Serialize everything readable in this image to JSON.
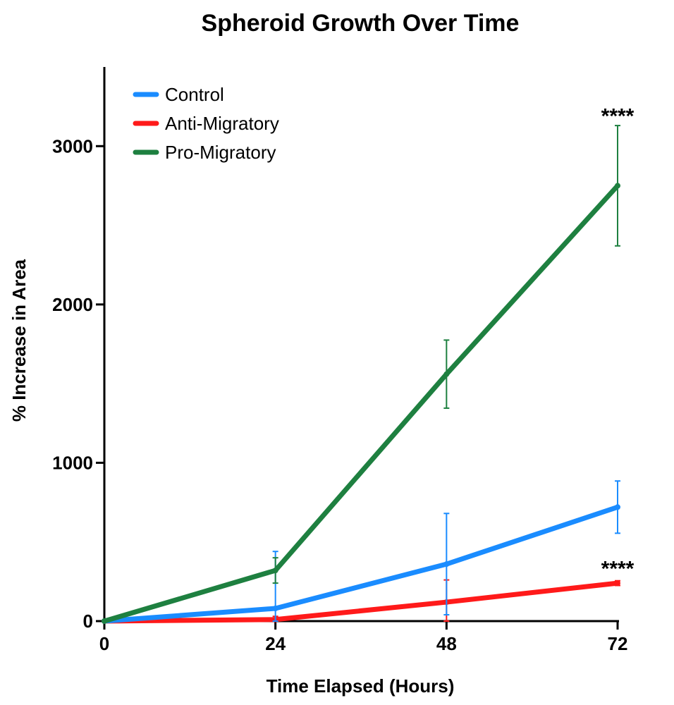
{
  "chart_data": {
    "type": "line",
    "title": "Spheroid Growth Over Time",
    "xlabel": "Time Elapsed (Hours)",
    "ylabel": "% Increase in Area",
    "x": [
      0,
      24,
      48,
      72
    ],
    "xticks": [
      0,
      24,
      48,
      72
    ],
    "yticks": [
      0,
      1000,
      2000,
      3000
    ],
    "xlim": [
      0,
      72
    ],
    "ylim": [
      0,
      3500
    ],
    "legend_position": "top-left",
    "series": [
      {
        "name": "Control",
        "color": "#1a8cff",
        "values": [
          0,
          80,
          360,
          720
        ],
        "error": [
          0,
          360,
          320,
          165
        ]
      },
      {
        "name": "Anti-Migratory",
        "color": "#ff1a1a",
        "values": [
          0,
          10,
          120,
          240
        ],
        "error": [
          0,
          20,
          140,
          15
        ]
      },
      {
        "name": "Pro-Migratory",
        "color": "#1e8040",
        "values": [
          0,
          320,
          1560,
          2750
        ],
        "error": [
          0,
          80,
          215,
          380
        ]
      }
    ],
    "annotations": [
      {
        "text": "****",
        "x": 72,
        "y": 3200,
        "series": "Pro-Migratory"
      },
      {
        "text": "****",
        "x": 72,
        "y": 340,
        "series": "Anti-Migratory"
      }
    ]
  }
}
